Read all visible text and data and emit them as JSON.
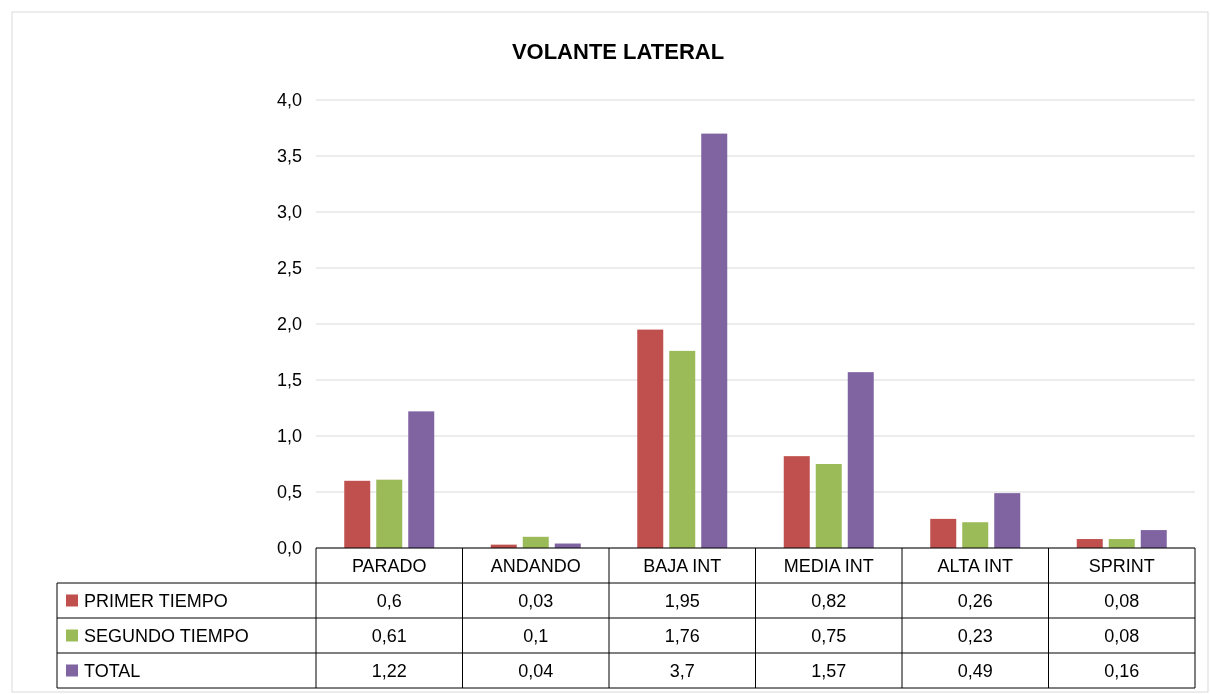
{
  "chart_data": {
    "type": "bar",
    "title": "VOLANTE LATERAL",
    "categories": [
      "PARADO",
      "ANDANDO",
      "BAJA INT",
      "MEDIA INT",
      "ALTA INT",
      "SPRINT"
    ],
    "series": [
      {
        "name": "PRIMER TIEMPO",
        "color": "#c0504d",
        "values": [
          0.6,
          0.03,
          1.95,
          0.82,
          0.26,
          0.08
        ],
        "value_labels": [
          "0,6",
          "0,03",
          "1,95",
          "0,82",
          "0,26",
          "0,08"
        ]
      },
      {
        "name": "SEGUNDO TIEMPO",
        "color": "#9bbb59",
        "values": [
          0.61,
          0.1,
          1.76,
          0.75,
          0.23,
          0.08
        ],
        "value_labels": [
          "0,61",
          "0,1",
          "1,76",
          "0,75",
          "0,23",
          "0,08"
        ]
      },
      {
        "name": "TOTAL",
        "color": "#8064a2",
        "values": [
          1.22,
          0.04,
          3.7,
          1.57,
          0.49,
          0.16
        ],
        "value_labels": [
          "1,22",
          "0,04",
          "3,7",
          "1,57",
          "0,49",
          "0,16"
        ]
      }
    ],
    "ylim": [
      0,
      4
    ],
    "yticks": [
      {
        "value": 0,
        "label": "0,0"
      },
      {
        "value": 0.5,
        "label": "0,5"
      },
      {
        "value": 1,
        "label": "1,0"
      },
      {
        "value": 1.5,
        "label": "1,5"
      },
      {
        "value": 2,
        "label": "2,0"
      },
      {
        "value": 2.5,
        "label": "2,5"
      },
      {
        "value": 3,
        "label": "3,0"
      },
      {
        "value": 3.5,
        "label": "3,5"
      },
      {
        "value": 4,
        "label": "4,0"
      }
    ],
    "grid": "y",
    "legend": "bottom"
  }
}
